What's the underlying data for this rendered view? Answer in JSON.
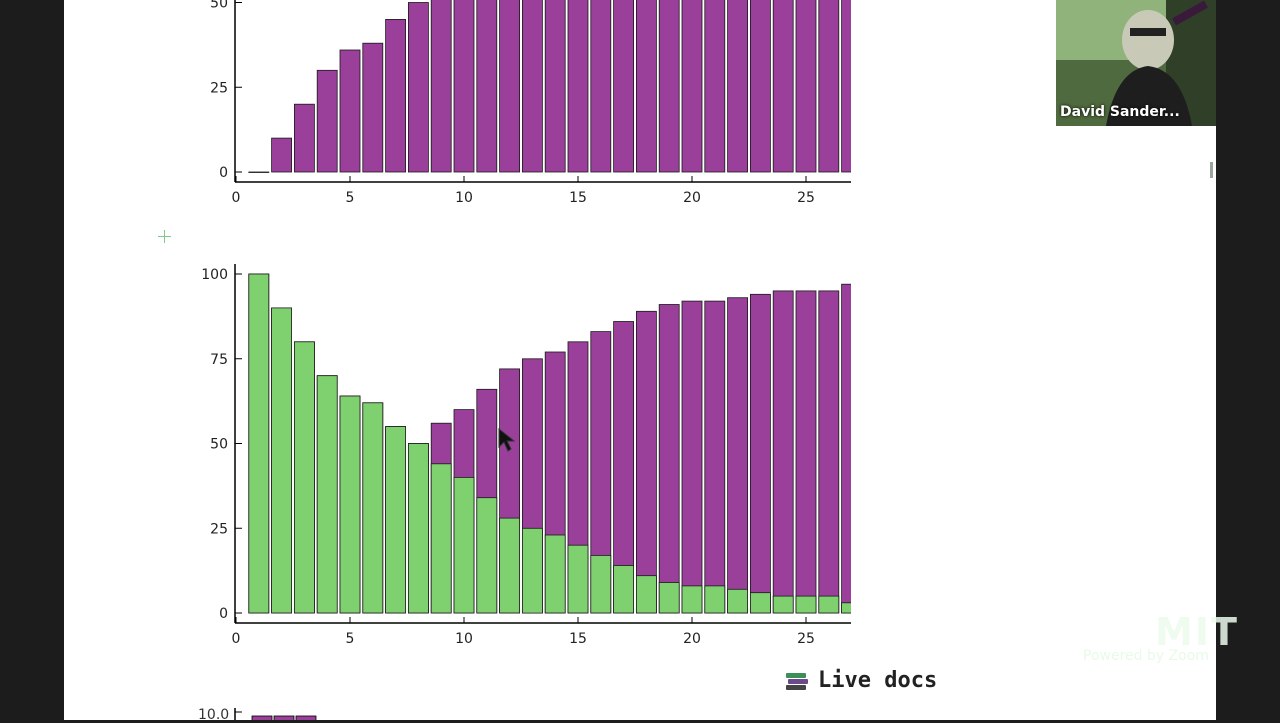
{
  "participant": {
    "name": "David Sander..."
  },
  "live_docs": {
    "label": "Live docs",
    "icon": "books-icon"
  },
  "watermark": {
    "logo": "MIT",
    "text": "Powered by Zoom"
  },
  "colors": {
    "purple": "#9a3f9a",
    "green": "#7fd170",
    "axis": "#000000",
    "page": "#ffffff",
    "outside": "#1c1c1c"
  },
  "chart_data": [
    {
      "type": "bar",
      "title": "",
      "xlabel": "",
      "ylabel": "",
      "x_ticks": [
        0,
        5,
        10,
        15,
        20,
        25
      ],
      "y_ticks_visible": [
        0,
        25,
        50
      ],
      "xlim": [
        0,
        27
      ],
      "ylim_visible": [
        0,
        50
      ],
      "categories": [
        1,
        2,
        3,
        4,
        5,
        6,
        7,
        8,
        9,
        10,
        11,
        12,
        13,
        14,
        15,
        16,
        17,
        18,
        19,
        20,
        21,
        22,
        23,
        24,
        25,
        26,
        27
      ],
      "series": [
        {
          "color": "#9a3f9a",
          "values": [
            0,
            10,
            20,
            30,
            36,
            38,
            45,
            50,
            55,
            60,
            66,
            72,
            75,
            77,
            80,
            83,
            86,
            89,
            91,
            92,
            92,
            93,
            94,
            95,
            95,
            95,
            97
          ]
        }
      ]
    },
    {
      "type": "bar",
      "stacked": false,
      "title": "",
      "xlabel": "",
      "ylabel": "",
      "x_ticks": [
        0,
        5,
        10,
        15,
        20,
        25
      ],
      "y_ticks": [
        0,
        25,
        50,
        75,
        100
      ],
      "xlim": [
        0,
        27
      ],
      "ylim": [
        0,
        100
      ],
      "categories": [
        1,
        2,
        3,
        4,
        5,
        6,
        7,
        8,
        9,
        10,
        11,
        12,
        13,
        14,
        15,
        16,
        17,
        18,
        19,
        20,
        21,
        22,
        23,
        24,
        25,
        26,
        27
      ],
      "series": [
        {
          "color": "#9a3f9a",
          "values": [
            100,
            90,
            80,
            70,
            64,
            62,
            55,
            50,
            56,
            60,
            66,
            72,
            75,
            77,
            80,
            83,
            86,
            89,
            91,
            92,
            92,
            93,
            94,
            95,
            95,
            95,
            97
          ]
        },
        {
          "color": "#7fd170",
          "values": [
            100,
            90,
            80,
            70,
            64,
            62,
            55,
            50,
            44,
            40,
            34,
            28,
            25,
            23,
            20,
            17,
            14,
            11,
            9,
            8,
            8,
            7,
            6,
            5,
            5,
            5,
            3
          ]
        }
      ]
    }
  ],
  "chart3": {
    "tick_label": "10.0"
  }
}
